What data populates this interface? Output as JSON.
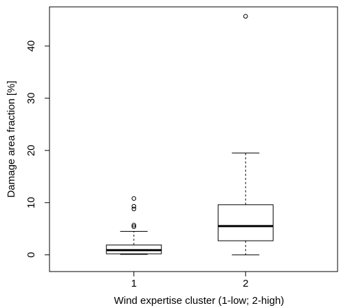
{
  "chart_data": {
    "type": "boxplot",
    "title": "",
    "xlabel": "Wind expertise cluster (1-low; 2-high)",
    "ylabel": "Damage area fraction [%]",
    "ylim": [
      -3.2,
      47.5
    ],
    "yticks": [
      0,
      10,
      20,
      30,
      40
    ],
    "grid": false,
    "categories": [
      "1",
      "2"
    ],
    "boxes": [
      {
        "category": "1",
        "whisker_low": 0.1,
        "q1": 0.2,
        "median": 0.9,
        "q3": 1.9,
        "whisker_high": 4.5,
        "outliers": [
          5.4,
          5.7,
          8.8,
          9.3,
          10.8
        ]
      },
      {
        "category": "2",
        "whisker_low": 0.0,
        "q1": 2.7,
        "median": 5.5,
        "q3": 9.6,
        "whisker_high": 19.5,
        "outliers": [
          45.7
        ]
      }
    ]
  }
}
